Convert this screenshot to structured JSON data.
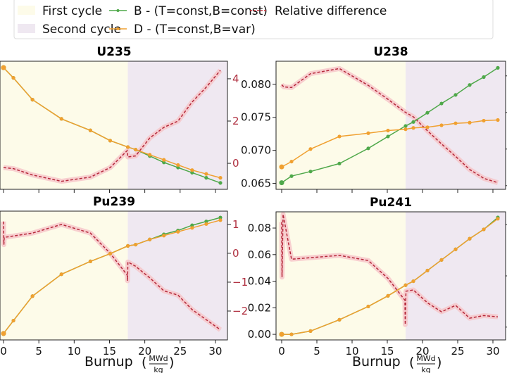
{
  "legend": {
    "items": [
      {
        "label": "First cycle",
        "kind": "patch",
        "color": "#fdfbe9"
      },
      {
        "label": "Second cycle",
        "kind": "patch",
        "color": "#efe8f1"
      },
      {
        "label": "B - (T=const,B=const)",
        "kind": "line-marker",
        "color": "#4fa84a"
      },
      {
        "label": "D - (T=const,B=var)",
        "kind": "line-marker",
        "color": "#f0a030"
      },
      {
        "label": "Relative difference",
        "kind": "dashed",
        "color": "#c8303a"
      }
    ]
  },
  "colors": {
    "first_cycle": "#fdfbe9",
    "second_cycle": "#efe8f1",
    "B": "#4fa84a",
    "D": "#f0a030",
    "relative": "#b5283a",
    "relative_band": "#f6c4c8"
  },
  "chart_data": [
    {
      "type": "line",
      "title": "U235",
      "xlabel": "",
      "cycle_boundary": 17.6,
      "xlim": [
        -0.5,
        31.7
      ],
      "xticks": [
        0,
        5,
        10,
        15,
        20,
        25,
        30
      ],
      "show_xtick_labels": false,
      "left_axis": {
        "ylim": [
          0,
          1
        ],
        "ticks": [],
        "tick_labels_visible": false
      },
      "right_axis": {
        "ylim": [
          -1.23,
          4.83
        ],
        "ticks": [
          0,
          2,
          4
        ],
        "tick_labels": [
          "0",
          "2",
          "4"
        ],
        "tick_labels_visible": true
      },
      "x": [
        0,
        1.4,
        4.1,
        8.2,
        12.3,
        15.1,
        17.6,
        18.7,
        20.7,
        22.7,
        24.7,
        26.7,
        28.7,
        30.7
      ],
      "series": [
        {
          "name": "B - (T=const,B=const)",
          "values": [
            0.95,
            0.87,
            0.7,
            0.55,
            0.46,
            0.38,
            0.33,
            0.31,
            0.26,
            0.21,
            0.17,
            0.13,
            0.09,
            0.05
          ]
        },
        {
          "name": "D - (T=const,B=var)",
          "values": [
            0.95,
            0.87,
            0.7,
            0.55,
            0.46,
            0.38,
            0.33,
            0.31,
            0.27,
            0.23,
            0.19,
            0.15,
            0.12,
            0.09
          ]
        }
      ],
      "relative": {
        "name": "Relative difference",
        "x": [
          0,
          1.4,
          4.1,
          8.2,
          12.3,
          15.1,
          17.5,
          17.6,
          18.7,
          20.7,
          22.7,
          24.7,
          26.7,
          28.7,
          30.7
        ],
        "values": [
          -0.2,
          -0.25,
          -0.55,
          -0.85,
          -0.65,
          -0.2,
          0.6,
          0.3,
          0.35,
          1.2,
          1.7,
          2.0,
          2.9,
          3.6,
          4.4
        ]
      }
    },
    {
      "type": "line",
      "title": "U238",
      "xlabel": "",
      "cycle_boundary": 17.6,
      "xlim": [
        -0.8,
        31.8
      ],
      "xticks": [
        0,
        5,
        10,
        15,
        20,
        25,
        30
      ],
      "show_xtick_labels": false,
      "left_axis": {
        "ylim": [
          0.0641,
          0.0835
        ],
        "ticks": [
          0.065,
          0.07,
          0.075,
          0.08
        ],
        "tick_labels": [
          "0.065",
          "0.070",
          "0.075",
          "0.080"
        ],
        "tick_labels_visible": true
      },
      "right_axis": {
        "ylim": [
          -10.5,
          7.0
        ],
        "ticks": [
          -10,
          -5,
          0,
          5
        ],
        "tick_labels_visible": false
      },
      "x": [
        0,
        1.4,
        4.1,
        8.2,
        12.3,
        15.1,
        17.6,
        18.7,
        20.7,
        22.7,
        24.7,
        26.7,
        28.7,
        30.7
      ],
      "series": [
        {
          "name": "B - (T=const,B=const)",
          "values": [
            0.0651,
            0.0661,
            0.0668,
            0.068,
            0.0703,
            0.0721,
            0.0737,
            0.0743,
            0.0757,
            0.0771,
            0.0784,
            0.0799,
            0.0811,
            0.0825
          ]
        },
        {
          "name": "D - (T=const,B=var)",
          "values": [
            0.0675,
            0.0683,
            0.0702,
            0.0721,
            0.0726,
            0.073,
            0.0732,
            0.0734,
            0.0735,
            0.0738,
            0.0741,
            0.0742,
            0.0745,
            0.0746
          ]
        }
      ],
      "relative": {
        "name": "Relative difference",
        "x": [
          0,
          0.3,
          1.4,
          4.1,
          8.2,
          12.3,
          15.1,
          17.6,
          18.7,
          20.7,
          22.7,
          24.7,
          26.7,
          28.7,
          30.7
        ],
        "values": [
          3.8,
          3.5,
          3.4,
          5.3,
          6.0,
          3.7,
          1.8,
          0.0,
          -0.6,
          -2.5,
          -4.3,
          -6.0,
          -7.8,
          -9.0,
          -9.6
        ]
      }
    },
    {
      "type": "line",
      "title": "Pu239",
      "xlabel": "Burnup",
      "xlabel_unit_num": "MWd",
      "xlabel_unit_den": "kg",
      "cycle_boundary": 17.6,
      "xlim": [
        -0.5,
        31.7
      ],
      "xticks": [
        0,
        5,
        10,
        15,
        20,
        25,
        30
      ],
      "xtick_labels": [
        "0",
        "5",
        "10",
        "15",
        "20",
        "25",
        "30"
      ],
      "show_xtick_labels": true,
      "left_axis": {
        "ylim": [
          0,
          1
        ],
        "ticks": [],
        "tick_labels_visible": false
      },
      "right_axis": {
        "ylim": [
          -3.0,
          1.46
        ],
        "ticks": [
          -2,
          -1,
          0,
          1
        ],
        "tick_labels": [
          "−2",
          "−1",
          "0",
          "1"
        ],
        "tick_labels_visible": true
      },
      "x": [
        0,
        1.4,
        4.1,
        8.2,
        12.3,
        15.1,
        17.6,
        18.7,
        20.7,
        22.7,
        24.7,
        26.7,
        28.7,
        30.7
      ],
      "series": [
        {
          "name": "B - (T=const,B=const)",
          "values": [
            0.05,
            0.15,
            0.34,
            0.51,
            0.61,
            0.67,
            0.73,
            0.74,
            0.78,
            0.82,
            0.85,
            0.89,
            0.92,
            0.95
          ]
        },
        {
          "name": "D - (T=const,B=var)",
          "values": [
            0.05,
            0.15,
            0.34,
            0.51,
            0.61,
            0.67,
            0.73,
            0.74,
            0.78,
            0.81,
            0.84,
            0.87,
            0.9,
            0.93
          ]
        }
      ],
      "relative": {
        "name": "Relative difference",
        "x": [
          0,
          0.05,
          0.1,
          1.4,
          4.1,
          8.2,
          12.3,
          15.1,
          17.5,
          17.55,
          17.6,
          18.7,
          20.7,
          22.7,
          24.7,
          26.7,
          28.7,
          30.7
        ],
        "values": [
          1.1,
          0.3,
          0.55,
          0.6,
          0.7,
          1.0,
          0.7,
          0.0,
          -0.75,
          -0.95,
          -0.3,
          -0.45,
          -0.85,
          -1.3,
          -1.45,
          -1.95,
          -2.3,
          -2.65
        ]
      }
    },
    {
      "type": "line",
      "title": "Pu241",
      "xlabel": "Burnup",
      "xlabel_unit_num": "MWd",
      "xlabel_unit_den": "kg",
      "cycle_boundary": 17.6,
      "xlim": [
        -0.8,
        31.8
      ],
      "xticks": [
        0,
        5,
        10,
        15,
        20,
        25,
        30
      ],
      "xtick_labels": [
        "0",
        "5",
        "10",
        "15",
        "20",
        "25",
        "30"
      ],
      "show_xtick_labels": true,
      "left_axis": {
        "ylim": [
          -0.0042,
          0.0922
        ],
        "ticks": [
          0.0,
          0.02,
          0.04,
          0.06,
          0.08
        ],
        "tick_labels": [
          "0.00",
          "0.02",
          "0.04",
          "0.06",
          "0.08"
        ],
        "tick_labels_visible": true
      },
      "right_axis": {
        "ylim": [
          0,
          1
        ],
        "ticks": [
          0.1,
          0.5,
          0.9
        ],
        "tick_labels_visible": false
      },
      "x": [
        0,
        1.4,
        4.1,
        8.2,
        12.3,
        15.1,
        17.6,
        18.7,
        20.7,
        22.7,
        24.7,
        26.7,
        28.7,
        30.7
      ],
      "series": [
        {
          "name": "B - (T=const,B=const)",
          "values": [
            0.0,
            0.0,
            0.0025,
            0.011,
            0.021,
            0.029,
            0.037,
            0.04,
            0.048,
            0.056,
            0.064,
            0.072,
            0.079,
            0.088
          ]
        },
        {
          "name": "D - (T=const,B=var)",
          "values": [
            0.0,
            0.0,
            0.0025,
            0.011,
            0.021,
            0.029,
            0.037,
            0.04,
            0.048,
            0.056,
            0.064,
            0.072,
            0.079,
            0.087
          ]
        }
      ],
      "relative": {
        "name": "Relative difference",
        "x": [
          0,
          0.05,
          0.2,
          1.4,
          8.2,
          12.3,
          15.1,
          17.5,
          17.55,
          17.6,
          17.65,
          18.7,
          20.7,
          22.7,
          24.7,
          26.7,
          28.7,
          30.7
        ],
        "values": [
          0.92,
          0.49,
          0.98,
          0.63,
          0.66,
          0.62,
          0.48,
          0.31,
          0.12,
          0.26,
          0.38,
          0.39,
          0.29,
          0.22,
          0.27,
          0.17,
          0.19,
          0.18
        ]
      }
    }
  ]
}
